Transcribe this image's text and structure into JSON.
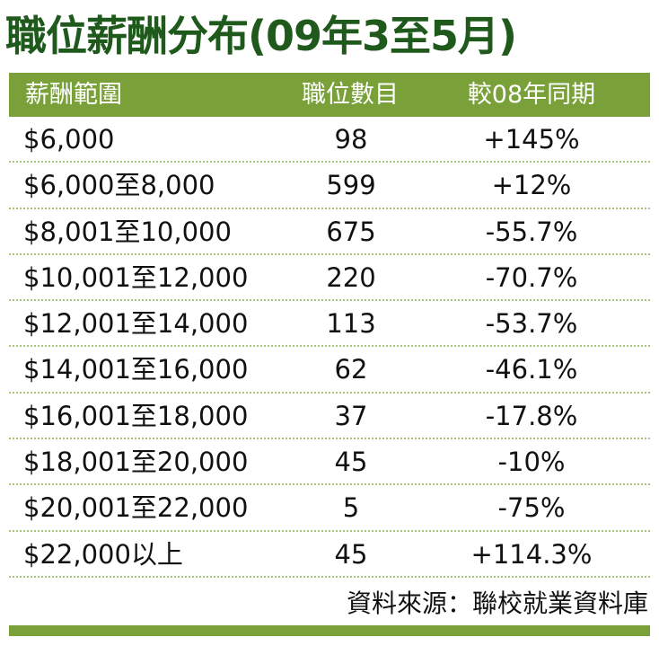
{
  "title": "職位薪酬分布(09年3至5月)",
  "chart_data": {
    "type": "table",
    "columns": [
      "薪酬範圍",
      "職位數目",
      "較08年同期"
    ],
    "rows": [
      {
        "range": "$6,000",
        "count": "98",
        "change": "+145%"
      },
      {
        "range": "$6,000至8,000",
        "count": "599",
        "change": "+12%"
      },
      {
        "range": "$8,001至10,000",
        "count": "675",
        "change": "-55.7%"
      },
      {
        "range": "$10,001至12,000",
        "count": "220",
        "change": "-70.7%"
      },
      {
        "range": "$12,001至14,000",
        "count": "113",
        "change": "-53.7%"
      },
      {
        "range": "$14,001至16,000",
        "count": "62",
        "change": "-46.1%"
      },
      {
        "range": "$16,001至18,000",
        "count": "37",
        "change": "-17.8%"
      },
      {
        "range": "$18,001至20,000",
        "count": "45",
        "change": "-10%"
      },
      {
        "range": "$20,001至22,000",
        "count": "5",
        "change": "-75%"
      },
      {
        "range": "$22,000以上",
        "count": "45",
        "change": "+114.3%"
      }
    ],
    "source": "資料來源：聯校就業資料庫"
  },
  "colors": {
    "title": "#1f5a1c",
    "header_bg": "#7aa03a",
    "header_text": "#ffffff",
    "row_divider": "#a9c47a"
  }
}
